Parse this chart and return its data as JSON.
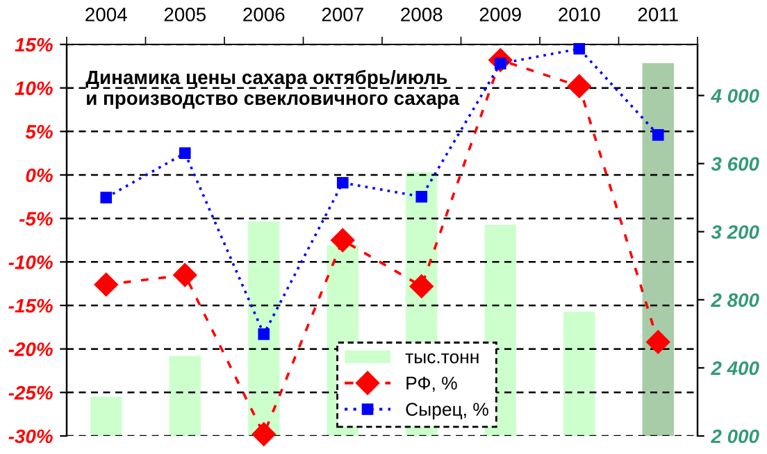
{
  "chart_data": {
    "type": "line",
    "title": "Динамика цены сахара октябрь/июль\nи производство свекловичного сахара",
    "categories": [
      "2004",
      "2005",
      "2006",
      "2007",
      "2008",
      "2009",
      "2010",
      "2011"
    ],
    "series": [
      {
        "name": "тыс.тонн",
        "type": "bar",
        "axis": "y2",
        "color": "#ccffcc",
        "colors": [
          "#ccffcc",
          "#ccffcc",
          "#ccffcc",
          "#ccffcc",
          "#ccffcc",
          "#ccffcc",
          "#ccffcc",
          "#a8cca8"
        ],
        "values": [
          2230,
          2470,
          3260,
          3120,
          3550,
          3240,
          2730,
          4190
        ]
      },
      {
        "name": "РФ, %",
        "color": "#ff0000",
        "marker": "diamond",
        "line_style": "dashed",
        "values": [
          -12.6,
          -11.5,
          -29.8,
          -7.5,
          -12.8,
          13.2,
          10.2,
          -19.2
        ]
      },
      {
        "name": "Сырец, %",
        "color": "#0000ff",
        "marker": "square",
        "line_style": "dotted",
        "values": [
          -2.6,
          2.5,
          -18.3,
          -0.9,
          -2.5,
          12.8,
          14.5,
          4.6
        ]
      }
    ],
    "ylim": [
      -30,
      15
    ],
    "yticks": [
      {
        "value": -30,
        "label": "-30%"
      },
      {
        "value": -25,
        "label": "-25%"
      },
      {
        "value": -20,
        "label": "-20%"
      },
      {
        "value": -15,
        "label": "-15%"
      },
      {
        "value": -10,
        "label": "-10%"
      },
      {
        "value": -5,
        "label": "-5%"
      },
      {
        "value": 0,
        "label": "0%"
      },
      {
        "value": 5,
        "label": "5%"
      },
      {
        "value": 10,
        "label": "10%"
      },
      {
        "value": 15,
        "label": "15%"
      }
    ],
    "y2lim": [
      2000,
      4300
    ],
    "y2ticks": [
      {
        "value": 2000,
        "label": "2 000"
      },
      {
        "value": 2400,
        "label": "2 400"
      },
      {
        "value": 2800,
        "label": "2 800"
      },
      {
        "value": 3200,
        "label": "3 200"
      },
      {
        "value": 3600,
        "label": "3 600"
      },
      {
        "value": 4000,
        "label": "4 000"
      }
    ],
    "grid": "y",
    "legend": "bottom"
  }
}
